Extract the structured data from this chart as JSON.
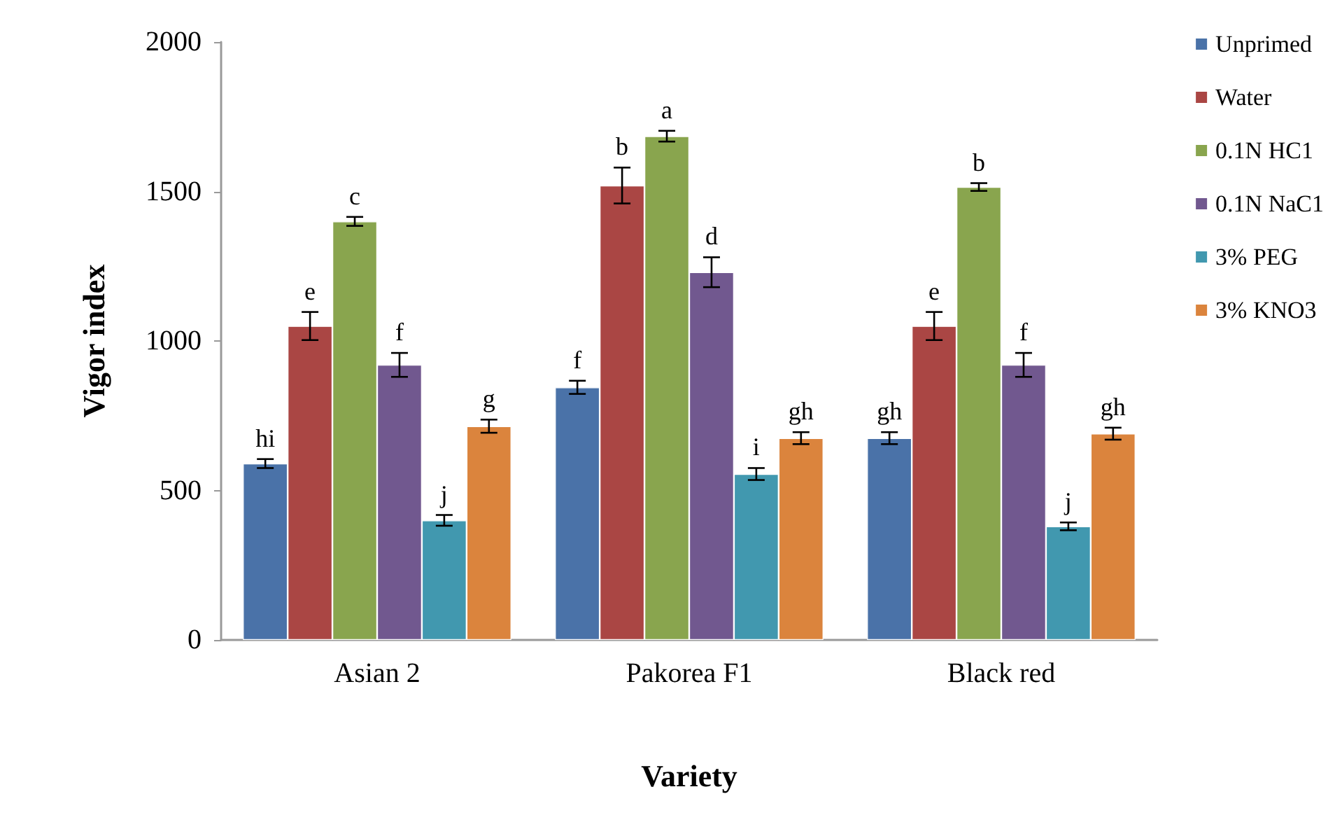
{
  "chart_data": {
    "type": "bar",
    "xlabel": "Variety",
    "ylabel": "Vigor index",
    "categories": [
      "Asian 2",
      "Pakorea F1",
      "Black red"
    ],
    "series": [
      {
        "name": "Unprimed",
        "color": "#4a72a8",
        "values": [
          590,
          845,
          675
        ],
        "errors": [
          15,
          22,
          20
        ],
        "value_labels": [
          "hi",
          "f",
          "gh"
        ]
      },
      {
        "name": "Water",
        "color": "#aa4644",
        "values": [
          1050,
          1520,
          1050
        ],
        "errors": [
          47,
          60,
          47
        ],
        "value_labels": [
          "e",
          "b",
          "e"
        ]
      },
      {
        "name": "0.1N HC1",
        "color": "#89a54e",
        "values": [
          1400,
          1685,
          1515
        ],
        "errors": [
          15,
          18,
          13
        ],
        "value_labels": [
          "c",
          "a",
          "b"
        ]
      },
      {
        "name": "0.1N NaC1",
        "color": "#71588f",
        "values": [
          920,
          1230,
          920
        ],
        "errors": [
          40,
          50,
          40
        ],
        "value_labels": [
          "f",
          "d",
          "f"
        ]
      },
      {
        "name": "3% PEG",
        "color": "#4198af",
        "values": [
          400,
          555,
          380
        ],
        "errors": [
          18,
          20,
          13
        ],
        "value_labels": [
          "j",
          "i",
          "j"
        ]
      },
      {
        "name": "3% KNO3",
        "color": "#db843d",
        "values": [
          715,
          675,
          690
        ],
        "errors": [
          22,
          20,
          20
        ],
        "value_labels": [
          "g",
          "gh",
          "gh"
        ]
      }
    ],
    "ylim": [
      0,
      2000
    ],
    "yticks": [
      0,
      500,
      1000,
      1500,
      2000
    ],
    "grid": false,
    "legend": "top right"
  }
}
